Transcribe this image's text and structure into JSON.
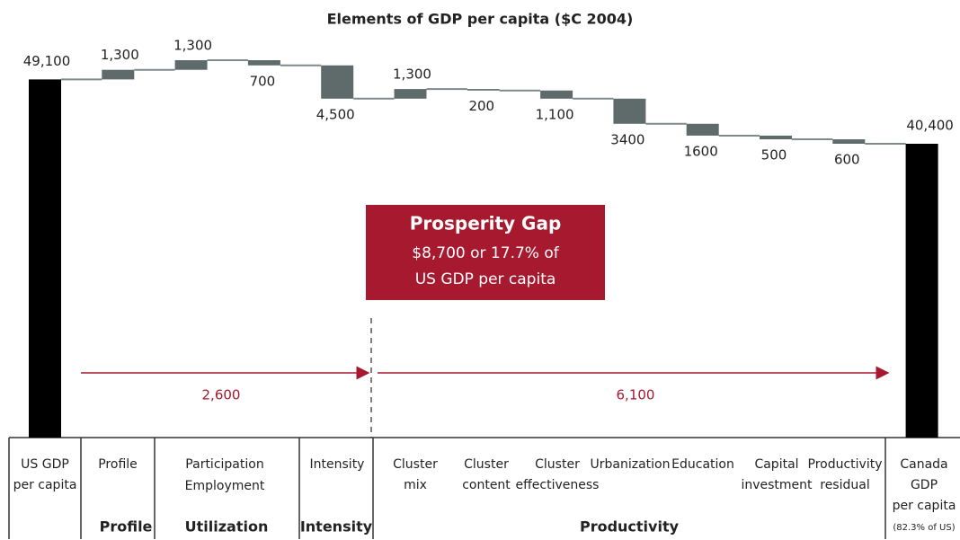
{
  "chart_data": {
    "type": "waterfall",
    "title": "Elements of GDP per capita ($C 2004)",
    "categories": [
      [
        "US GDP",
        "per capita"
      ],
      [
        "Profile"
      ],
      [
        "Participation"
      ],
      [
        "Employment"
      ],
      [
        "Intensity"
      ],
      [
        "Cluster",
        "mix"
      ],
      [
        "Cluster",
        "content"
      ],
      [
        "Cluster",
        "effectiveness"
      ],
      [
        "Urbanization"
      ],
      [
        "Education"
      ],
      [
        "Capital",
        "investment"
      ],
      [
        "Productivity",
        "residual"
      ],
      [
        "Canada",
        "GDP",
        "per capita"
      ]
    ],
    "category_note": "(82.3% of US)",
    "groups": [
      "Profile",
      "Utilization",
      "Intensity",
      "Productivity"
    ],
    "values": [
      49100,
      1300,
      1300,
      -700,
      -4500,
      1300,
      -200,
      -1100,
      -3400,
      -1600,
      -500,
      -600,
      40400
    ],
    "value_labels": [
      "49,100",
      "1,300",
      "1,300",
      "700",
      "4,500",
      "1,300",
      "200",
      "1,100",
      "3400",
      "1600",
      "500",
      "600",
      "40,400"
    ],
    "total_color": "#000000",
    "color": "#5f6b6b",
    "connector_color": "#7f8a8a",
    "callout": {
      "title": "Prosperity Gap",
      "lines": [
        "$8,700 or 17.7% of",
        "US GDP per capita"
      ],
      "color": "#a6192e"
    },
    "annotations": [
      "2,600",
      "6,100"
    ]
  }
}
